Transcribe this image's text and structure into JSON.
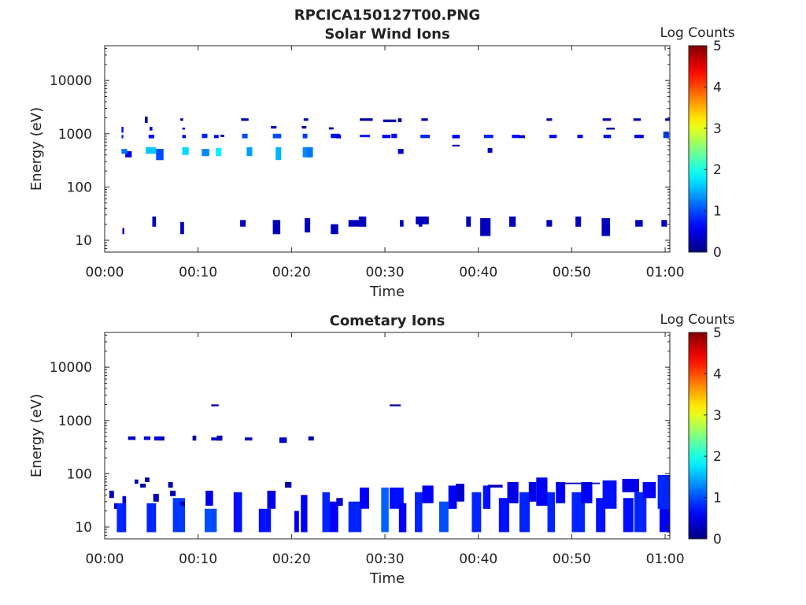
{
  "figure_title": "RPCICA150127T00.PNG",
  "chart_data": [
    {
      "type": "heatmap",
      "title": "Solar Wind Ions",
      "xlabel": "Time",
      "ylabel": "Energy (eV)",
      "x_ticks": [
        "00:00",
        "00:10",
        "00:20",
        "00:30",
        "00:40",
        "00:50",
        "01:00"
      ],
      "xlim_minutes": [
        0,
        60.5
      ],
      "y_scale": "log",
      "ylim": [
        6,
        45000
      ],
      "y_ticks": [
        10,
        100,
        1000,
        10000
      ],
      "y_tick_labels": [
        "10",
        "100",
        "1000",
        "10000"
      ],
      "colorbar": {
        "label": "Log Counts",
        "range": [
          0,
          5
        ],
        "ticks": [
          "0",
          "1",
          "2",
          "3",
          "4",
          "5"
        ],
        "colormap": "jet"
      },
      "cells": [
        [
          1.8,
          2.0,
          1050,
          1350,
          0.6
        ],
        [
          1.8,
          2.0,
          820,
          950,
          0.8
        ],
        [
          1.8,
          2.4,
          420,
          520,
          1.2
        ],
        [
          2.2,
          2.6,
          360,
          420,
          0.4
        ],
        [
          1.9,
          2.1,
          13,
          17,
          0.3
        ],
        [
          2.4,
          2.9,
          360,
          470,
          0.5
        ],
        [
          4.3,
          4.6,
          1600,
          2100,
          0.2
        ],
        [
          4.8,
          5.1,
          1150,
          1350,
          0.5
        ],
        [
          4.7,
          5.3,
          820,
          960,
          0.7
        ],
        [
          4.4,
          5.5,
          420,
          560,
          1.6
        ],
        [
          5.5,
          6.3,
          320,
          520,
          1.0
        ],
        [
          5.1,
          5.5,
          18,
          28,
          0.3
        ],
        [
          8.1,
          8.4,
          1750,
          1950,
          0.2
        ],
        [
          8.3,
          8.6,
          1200,
          1300,
          0.3
        ],
        [
          8.3,
          8.7,
          830,
          950,
          0.5
        ],
        [
          8.3,
          9.0,
          400,
          560,
          1.7
        ],
        [
          8.1,
          8.5,
          13,
          22,
          0.3
        ],
        [
          10.4,
          11.0,
          830,
          1000,
          0.8
        ],
        [
          10.4,
          11.2,
          380,
          520,
          1.3
        ],
        [
          11.7,
          12.2,
          830,
          950,
          0.6
        ],
        [
          11.9,
          12.5,
          380,
          540,
          1.8
        ],
        [
          12.4,
          12.8,
          870,
          960,
          0.2
        ],
        [
          14.6,
          15.4,
          1750,
          1950,
          0.2
        ],
        [
          14.7,
          15.3,
          820,
          1000,
          1.0
        ],
        [
          15.2,
          15.8,
          380,
          560,
          1.4
        ],
        [
          14.5,
          15.1,
          18,
          24,
          0.3
        ],
        [
          17.8,
          18.4,
          1250,
          1400,
          0.3
        ],
        [
          18.0,
          18.9,
          820,
          1000,
          1.0
        ],
        [
          18.3,
          18.9,
          320,
          560,
          1.5
        ],
        [
          18.0,
          18.8,
          13,
          24,
          0.3
        ],
        [
          21.1,
          21.6,
          1250,
          1400,
          0.2
        ],
        [
          21.2,
          21.7,
          820,
          1000,
          0.9
        ],
        [
          21.2,
          21.8,
          360,
          560,
          1.3
        ],
        [
          21.3,
          21.8,
          1750,
          1950,
          0.2
        ],
        [
          21.4,
          22.0,
          14,
          26,
          0.3
        ],
        [
          21.6,
          22.3,
          360,
          560,
          1.2
        ],
        [
          24.0,
          24.5,
          1200,
          1320,
          0.2
        ],
        [
          24.2,
          25.2,
          830,
          1000,
          0.7
        ],
        [
          24.8,
          25.3,
          820,
          950,
          0.5
        ],
        [
          24.2,
          25.0,
          13,
          20,
          0.3
        ],
        [
          27.3,
          28.7,
          1750,
          1950,
          0.2
        ],
        [
          27.3,
          28.4,
          860,
          960,
          0.8
        ],
        [
          27.2,
          28.0,
          18,
          28,
          0.3
        ],
        [
          26.1,
          27.5,
          18,
          24,
          0.3
        ],
        [
          29.7,
          30.6,
          830,
          960,
          0.6
        ],
        [
          29.8,
          31.2,
          1650,
          1850,
          0.2
        ],
        [
          31.4,
          31.8,
          1650,
          1950,
          0.2
        ],
        [
          30.7,
          31.3,
          830,
          1000,
          0.6
        ],
        [
          31.4,
          32.0,
          420,
          520,
          0.4
        ],
        [
          31.6,
          32.0,
          18,
          24,
          0.3
        ],
        [
          33.9,
          34.6,
          1750,
          1950,
          0.2
        ],
        [
          33.8,
          34.8,
          830,
          960,
          0.8
        ],
        [
          33.3,
          34.7,
          20,
          28,
          0.3
        ],
        [
          33.6,
          34.0,
          18,
          24,
          0.3
        ],
        [
          37.2,
          38.0,
          820,
          960,
          0.6
        ],
        [
          37.2,
          38.0,
          580,
          620,
          0.2
        ],
        [
          38.7,
          39.2,
          18,
          28,
          0.3
        ],
        [
          40.6,
          41.6,
          830,
          960,
          0.8
        ],
        [
          41.0,
          41.5,
          440,
          540,
          0.3
        ],
        [
          40.2,
          41.3,
          12,
          26,
          0.3
        ],
        [
          43.6,
          44.4,
          830,
          960,
          0.7
        ],
        [
          44.3,
          45.0,
          830,
          940,
          0.4
        ],
        [
          43.3,
          44.0,
          18,
          28,
          0.3
        ],
        [
          47.3,
          47.9,
          1750,
          1950,
          0.2
        ],
        [
          47.6,
          48.4,
          830,
          960,
          0.6
        ],
        [
          47.3,
          47.9,
          18,
          24,
          0.3
        ],
        [
          50.6,
          51.2,
          830,
          960,
          0.6
        ],
        [
          50.4,
          51.0,
          18,
          28,
          0.3
        ],
        [
          53.3,
          54.2,
          1750,
          1950,
          0.2
        ],
        [
          53.7,
          54.6,
          1200,
          1300,
          0.2
        ],
        [
          53.4,
          54.2,
          830,
          960,
          0.7
        ],
        [
          53.2,
          54.1,
          12,
          26,
          0.3
        ],
        [
          56.6,
          57.4,
          1750,
          1950,
          0.2
        ],
        [
          56.7,
          57.7,
          830,
          960,
          0.6
        ],
        [
          56.8,
          57.6,
          18,
          24,
          0.3
        ],
        [
          60.0,
          60.5,
          1750,
          1950,
          0.2
        ],
        [
          59.8,
          60.4,
          830,
          1100,
          0.9
        ],
        [
          59.6,
          60.2,
          18,
          24,
          0.3
        ]
      ]
    },
    {
      "type": "heatmap",
      "title": "Cometary Ions",
      "xlabel": "Time",
      "ylabel": "Energy (eV)",
      "x_ticks": [
        "00:00",
        "00:10",
        "00:20",
        "00:30",
        "00:40",
        "00:50",
        "01:00"
      ],
      "xlim_minutes": [
        0,
        60.5
      ],
      "y_scale": "log",
      "ylim": [
        6,
        45000
      ],
      "y_ticks": [
        10,
        100,
        1000,
        10000
      ],
      "y_tick_labels": [
        "10",
        "100",
        "1000",
        "10000"
      ],
      "colorbar": {
        "label": "Log Counts",
        "range": [
          0,
          5
        ],
        "ticks": [
          "0",
          "1",
          "2",
          "3",
          "4",
          "5"
        ],
        "colormap": "jet"
      },
      "cells": [
        [
          0.5,
          1.0,
          35,
          48,
          0.3
        ],
        [
          1.0,
          1.4,
          22,
          28,
          0.3
        ],
        [
          1.3,
          2.3,
          8,
          28,
          0.8
        ],
        [
          1.9,
          2.3,
          28,
          38,
          0.4
        ],
        [
          2.5,
          3.3,
          430,
          500,
          0.3
        ],
        [
          3.2,
          3.6,
          65,
          78,
          0.2
        ],
        [
          3.8,
          4.4,
          55,
          65,
          0.2
        ],
        [
          4.2,
          4.9,
          430,
          500,
          0.4
        ],
        [
          4.3,
          4.8,
          70,
          85,
          0.2
        ],
        [
          4.5,
          5.5,
          8,
          28,
          0.8
        ],
        [
          5.2,
          5.8,
          30,
          42,
          0.3
        ],
        [
          5.3,
          6.0,
          420,
          500,
          0.5
        ],
        [
          5.9,
          6.4,
          420,
          500,
          0.3
        ],
        [
          6.8,
          7.3,
          55,
          70,
          0.2
        ],
        [
          7.0,
          7.6,
          38,
          48,
          0.3
        ],
        [
          7.3,
          8.6,
          8,
          35,
          0.9
        ],
        [
          8.1,
          8.6,
          25,
          30,
          0.3
        ],
        [
          9.4,
          9.8,
          420,
          520,
          0.2
        ],
        [
          10.8,
          11.6,
          25,
          48,
          0.5
        ],
        [
          10.7,
          12.0,
          8,
          22,
          1.0
        ],
        [
          11.4,
          12.2,
          1850,
          2000,
          0.2
        ],
        [
          11.4,
          12.5,
          420,
          480,
          0.4
        ],
        [
          12.0,
          12.6,
          420,
          520,
          0.2
        ],
        [
          13.8,
          14.7,
          8,
          45,
          0.7
        ],
        [
          15.0,
          15.8,
          420,
          480,
          0.3
        ],
        [
          16.5,
          17.2,
          8,
          22,
          0.7
        ],
        [
          17.4,
          18.3,
          22,
          48,
          0.5
        ],
        [
          17.2,
          17.8,
          8,
          22,
          0.7
        ],
        [
          18.7,
          19.5,
          380,
          480,
          0.4
        ],
        [
          19.3,
          20.0,
          55,
          70,
          0.2
        ],
        [
          20.3,
          20.8,
          8,
          20,
          0.5
        ],
        [
          21.0,
          21.7,
          8,
          40,
          0.6
        ],
        [
          21.8,
          22.4,
          420,
          500,
          0.2
        ],
        [
          23.3,
          24.1,
          8,
          45,
          0.8
        ],
        [
          24.1,
          25.0,
          8,
          30,
          0.6
        ],
        [
          24.8,
          25.5,
          25,
          35,
          0.4
        ],
        [
          26.1,
          27.5,
          8,
          30,
          0.8
        ],
        [
          27.3,
          28.3,
          22,
          55,
          0.6
        ],
        [
          29.6,
          30.4,
          8,
          55,
          1.1
        ],
        [
          30.5,
          31.7,
          1850,
          2000,
          0.2
        ],
        [
          30.5,
          32.0,
          22,
          55,
          0.7
        ],
        [
          31.5,
          32.3,
          8,
          28,
          0.6
        ],
        [
          33.2,
          34.0,
          8,
          45,
          0.8
        ],
        [
          34.0,
          35.2,
          28,
          60,
          0.6
        ],
        [
          35.8,
          36.8,
          8,
          30,
          1.0
        ],
        [
          36.8,
          37.7,
          22,
          60,
          0.6
        ],
        [
          37.6,
          38.5,
          30,
          65,
          0.4
        ],
        [
          39.3,
          40.3,
          8,
          45,
          0.8
        ],
        [
          40.5,
          41.3,
          22,
          60,
          0.7
        ],
        [
          41.0,
          42.6,
          55,
          62,
          0.3
        ],
        [
          42.2,
          43.3,
          8,
          35,
          0.7
        ],
        [
          43.1,
          44.3,
          28,
          70,
          0.5
        ],
        [
          44.4,
          45.5,
          8,
          45,
          0.8
        ],
        [
          45.4,
          46.2,
          30,
          70,
          0.5
        ],
        [
          46.2,
          47.4,
          25,
          85,
          0.6
        ],
        [
          47.4,
          48.2,
          8,
          45,
          0.8
        ],
        [
          48.3,
          49.3,
          28,
          70,
          0.6
        ],
        [
          50.0,
          51.4,
          8,
          45,
          0.8
        ],
        [
          51.0,
          52.2,
          28,
          70,
          0.6
        ],
        [
          48.3,
          53.0,
          64,
          68,
          0.3
        ],
        [
          52.6,
          53.6,
          8,
          35,
          0.7
        ],
        [
          53.3,
          54.8,
          22,
          75,
          0.7
        ],
        [
          55.5,
          56.6,
          8,
          35,
          0.7
        ],
        [
          55.4,
          57.2,
          45,
          80,
          0.5
        ],
        [
          56.7,
          58.0,
          8,
          45,
          0.8
        ],
        [
          57.6,
          59.0,
          35,
          70,
          0.6
        ],
        [
          59.2,
          60.5,
          22,
          95,
          0.8
        ],
        [
          59.4,
          60.5,
          8,
          22,
          0.6
        ]
      ]
    }
  ]
}
